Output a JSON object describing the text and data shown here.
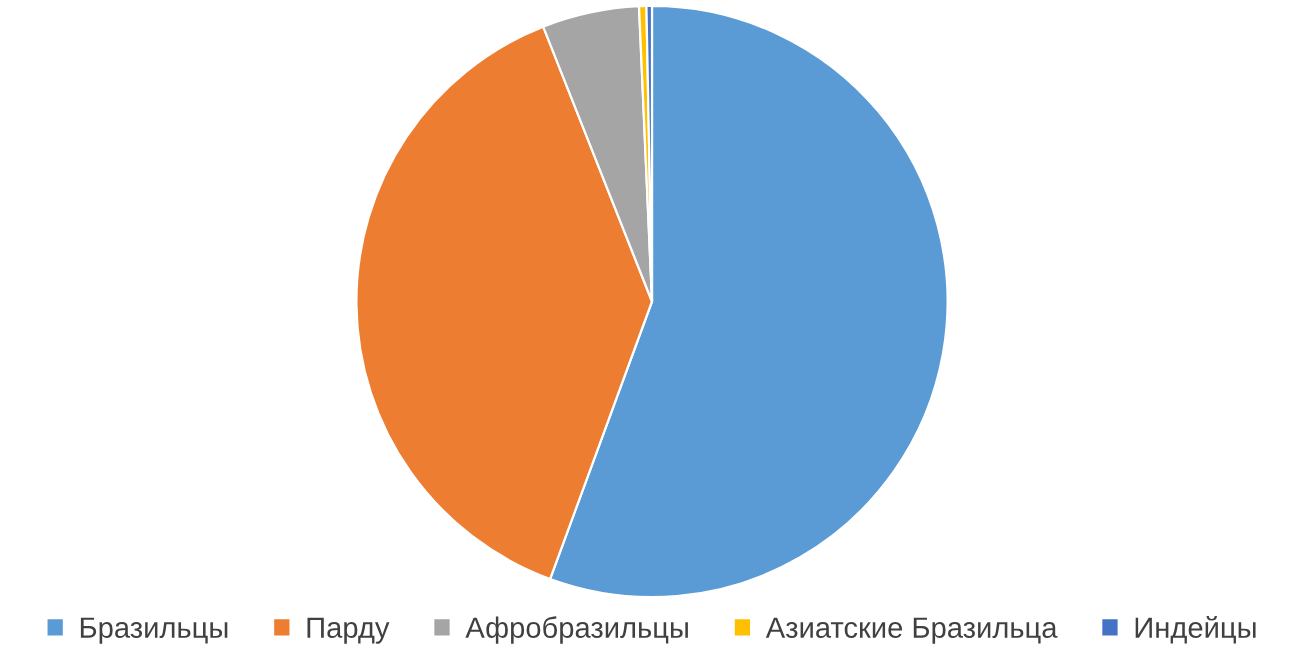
{
  "chart_data": {
    "type": "pie",
    "categories": [
      "Бразильцы",
      "Парду",
      "Афробразильцы",
      "Азиатские Бразильца",
      "Индейцы"
    ],
    "values": [
      55.6,
      38.4,
      5.3,
      0.4,
      0.3
    ],
    "colors": [
      "#5b9bd5",
      "#ed7d31",
      "#a5a5a5",
      "#ffc000",
      "#4472c4"
    ],
    "legend": "bottom"
  }
}
